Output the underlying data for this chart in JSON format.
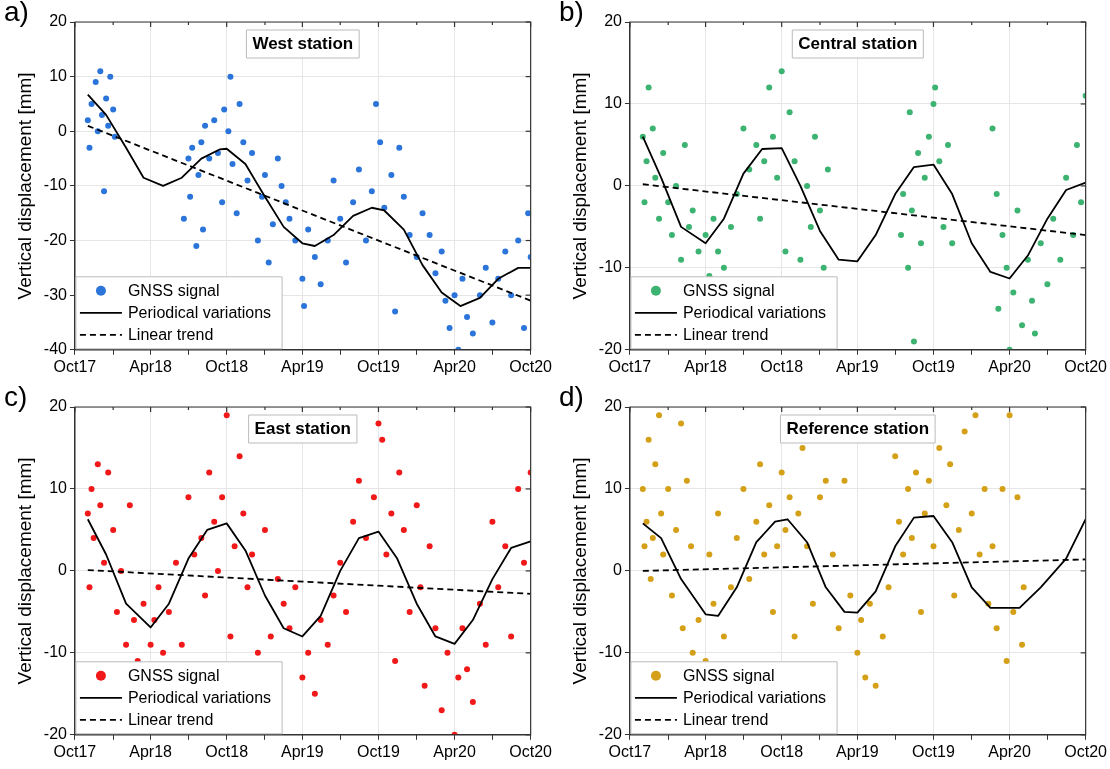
{
  "chart_data": [
    {
      "type": "scatter",
      "title": "West station",
      "ylabel": "Vertical displacement [mm]",
      "annotations": [
        "a)"
      ],
      "legend": "bottom left",
      "grid": true,
      "xlim": [
        "2017-10",
        "2020-10"
      ],
      "xticks": [
        {
          "value": "2017-10",
          "label": "Oct17"
        },
        {
          "value": "2018-01",
          "label": null
        },
        {
          "value": "2018-04",
          "label": "Apr18"
        },
        {
          "value": "2018-07",
          "label": null
        },
        {
          "value": "2018-10",
          "label": "Oct18"
        },
        {
          "value": "2019-01",
          "label": null
        },
        {
          "value": "2019-04",
          "label": "Apr19"
        },
        {
          "value": "2019-07",
          "label": null
        },
        {
          "value": "2019-10",
          "label": "Oct19"
        },
        {
          "value": "2020-01",
          "label": null
        },
        {
          "value": "2020-04",
          "label": "Apr20"
        },
        {
          "value": "2020-07",
          "label": null
        },
        {
          "value": "2020-10",
          "label": "Oct20"
        }
      ],
      "ylim": [
        -40,
        20
      ],
      "yticks": [
        -40,
        -30,
        -20,
        -10,
        0,
        10,
        20
      ],
      "series": [
        {
          "name": "GNSS signal",
          "type": "scatter",
          "marker": "circle",
          "color": "#2b74d9",
          "x": [
            "2017-11-01",
            "2017-11-05",
            "2017-11-10",
            "2017-11-20",
            "2017-11-25",
            "2017-12-01",
            "2017-12-05",
            "2017-12-10",
            "2017-12-15",
            "2017-12-20",
            "2017-12-25",
            "2018-01-01",
            "2018-01-05",
            "2018-06-20",
            "2018-07-01",
            "2018-07-05",
            "2018-07-10",
            "2018-07-20",
            "2018-07-25",
            "2018-08-01",
            "2018-08-05",
            "2018-08-10",
            "2018-08-20",
            "2018-09-01",
            "2018-09-10",
            "2018-09-20",
            "2018-09-25",
            "2018-10-05",
            "2018-10-10",
            "2018-10-15",
            "2018-10-25",
            "2018-11-01",
            "2018-11-10",
            "2018-11-20",
            "2018-12-01",
            "2018-12-15",
            "2018-12-25",
            "2019-01-01",
            "2019-01-10",
            "2019-01-20",
            "2019-02-01",
            "2019-02-10",
            "2019-02-20",
            "2019-03-01",
            "2019-03-15",
            "2019-04-01",
            "2019-04-05",
            "2019-04-15",
            "2019-05-01",
            "2019-05-15",
            "2019-06-01",
            "2019-06-15",
            "2019-07-01",
            "2019-07-15",
            "2019-08-01",
            "2019-08-15",
            "2019-09-01",
            "2019-09-15",
            "2019-09-25",
            "2019-10-05",
            "2019-10-15",
            "2019-11-01",
            "2019-11-10",
            "2019-11-20",
            "2019-12-01",
            "2019-12-15",
            "2020-01-01",
            "2020-01-15",
            "2020-02-01",
            "2020-02-15",
            "2020-03-01",
            "2020-03-10",
            "2020-03-20",
            "2020-04-01",
            "2020-04-10",
            "2020-04-20",
            "2020-05-01",
            "2020-05-15",
            "2020-06-01",
            "2020-06-15",
            "2020-07-01",
            "2020-07-15",
            "2020-08-01",
            "2020-08-15",
            "2020-09-01",
            "2020-09-15",
            "2020-09-25",
            "2020-10-01"
          ],
          "values": [
            2,
            -3,
            5,
            9,
            0,
            11,
            3,
            -11,
            6,
            1,
            10,
            4,
            -1,
            -16,
            -5,
            -12,
            -3,
            -21,
            -8,
            -2,
            -18,
            1,
            -5,
            2,
            -4,
            -13,
            4,
            0,
            10,
            -6,
            -15,
            5,
            -2,
            -9,
            -4,
            -20,
            -12,
            -8,
            -24,
            -17,
            -5,
            -10,
            -13,
            -16,
            -20,
            -27,
            -32,
            -18,
            -23,
            -28,
            -20,
            -9,
            -16,
            -24,
            -13,
            -7,
            -20,
            -11,
            5,
            -2,
            -14,
            -8,
            -33,
            -3,
            -12,
            -19,
            -23,
            -15,
            -19,
            -26,
            -22,
            -31,
            -36,
            -30,
            -40,
            -27,
            -34,
            -37,
            -30,
            -25,
            -35,
            -27,
            -22,
            -30,
            -20,
            -36,
            -15,
            -23
          ]
        },
        {
          "name": "Periodical variations",
          "type": "line",
          "marker": "none",
          "line_style": "solid",
          "color": "#000000",
          "x": [
            "2017-11-01",
            "2017-12-15",
            "2018-02-01",
            "2018-03-15",
            "2018-05-01",
            "2018-06-15",
            "2018-08-01",
            "2018-09-15",
            "2018-10-01",
            "2018-11-15",
            "2019-01-01",
            "2019-02-15",
            "2019-04-01",
            "2019-05-01",
            "2019-06-15",
            "2019-08-01",
            "2019-09-15",
            "2019-10-15",
            "2019-12-01",
            "2020-01-15",
            "2020-03-01",
            "2020-04-15",
            "2020-06-01",
            "2020-07-15",
            "2020-09-01",
            "2020-10-01"
          ],
          "values": [
            6.7,
            3,
            -3,
            -8.5,
            -10,
            -8.5,
            -5,
            -3.3,
            -3.2,
            -6,
            -12,
            -17.5,
            -20.5,
            -21,
            -19,
            -15.5,
            -14,
            -14.5,
            -18,
            -24.5,
            -29.5,
            -32,
            -30.5,
            -27,
            -25,
            -25
          ]
        },
        {
          "name": "Linear trend",
          "type": "line",
          "marker": "none",
          "line_style": "dashed",
          "color": "#000000",
          "x": [
            "2017-11-01",
            "2020-10-01"
          ],
          "values": [
            1,
            -31
          ]
        }
      ]
    },
    {
      "type": "scatter",
      "title": "Central station",
      "ylabel": "Vertical displacement [mm]",
      "annotations": [
        "b)"
      ],
      "legend": "bottom left",
      "grid": true,
      "xlim": [
        "2017-10",
        "2020-10"
      ],
      "xticks": [
        {
          "value": "2017-10",
          "label": "Oct17"
        },
        {
          "value": "2018-01",
          "label": null
        },
        {
          "value": "2018-04",
          "label": "Apr18"
        },
        {
          "value": "2018-07",
          "label": null
        },
        {
          "value": "2018-10",
          "label": "Oct18"
        },
        {
          "value": "2019-01",
          "label": null
        },
        {
          "value": "2019-04",
          "label": "Apr19"
        },
        {
          "value": "2019-07",
          "label": null
        },
        {
          "value": "2019-10",
          "label": "Oct19"
        },
        {
          "value": "2020-01",
          "label": null
        },
        {
          "value": "2020-04",
          "label": "Apr20"
        },
        {
          "value": "2020-07",
          "label": null
        },
        {
          "value": "2020-10",
          "label": "Oct20"
        }
      ],
      "ylim": [
        -20,
        20
      ],
      "yticks": [
        -20,
        -10,
        0,
        10,
        20
      ],
      "series": [
        {
          "name": "GNSS signal",
          "type": "scatter",
          "marker": "circle",
          "color": "#3cb371",
          "x": [
            "2017-11-01",
            "2017-11-05",
            "2017-11-10",
            "2017-11-15",
            "2017-11-25",
            "2017-12-01",
            "2017-12-10",
            "2017-12-20",
            "2018-01-01",
            "2018-01-10",
            "2018-01-20",
            "2018-02-01",
            "2018-02-10",
            "2018-02-20",
            "2018-03-01",
            "2018-03-15",
            "2018-04-01",
            "2018-04-10",
            "2018-04-20",
            "2018-05-01",
            "2018-05-15",
            "2018-06-01",
            "2018-06-15",
            "2018-07-01",
            "2018-07-15",
            "2018-08-01",
            "2018-08-10",
            "2018-08-20",
            "2018-09-01",
            "2018-09-10",
            "2018-09-20",
            "2018-10-01",
            "2018-10-10",
            "2018-10-20",
            "2018-11-01",
            "2018-11-15",
            "2018-12-01",
            "2018-12-10",
            "2018-12-20",
            "2019-01-01",
            "2019-01-10",
            "2019-01-20",
            "2019-07-15",
            "2019-07-20",
            "2019-08-01",
            "2019-08-05",
            "2019-08-10",
            "2019-08-15",
            "2019-08-25",
            "2019-09-01",
            "2019-09-10",
            "2019-09-20",
            "2019-10-01",
            "2019-10-05",
            "2019-10-15",
            "2019-10-25",
            "2019-11-05",
            "2019-11-15",
            "2020-02-20",
            "2020-03-01",
            "2020-03-05",
            "2020-03-15",
            "2020-03-25",
            "2020-04-01",
            "2020-04-10",
            "2020-04-20",
            "2020-05-01",
            "2020-05-15",
            "2020-05-25",
            "2020-06-01",
            "2020-06-15",
            "2020-07-01",
            "2020-07-15",
            "2020-08-01",
            "2020-08-15",
            "2020-09-01",
            "2020-09-10",
            "2020-09-20",
            "2020-10-01"
          ],
          "values": [
            6,
            -2,
            3,
            12,
            7,
            1,
            -4,
            4,
            -2,
            -6,
            0,
            -9,
            5,
            -5,
            -3,
            -8,
            -6,
            -11,
            -4,
            -8,
            -10,
            -5,
            -1,
            7,
            2,
            5,
            -4,
            3,
            12,
            6,
            1,
            14,
            -8,
            9,
            3,
            -9,
            0,
            -5,
            6,
            -3,
            -10,
            2,
            -6,
            -1,
            -10,
            9,
            -3,
            -19,
            4,
            -7,
            1,
            6,
            10,
            12,
            3,
            -5,
            5,
            -7,
            7,
            -1,
            -15,
            -6,
            -10,
            -20,
            -13,
            -3,
            -17,
            -9,
            -14,
            -18,
            -7,
            -12,
            -4,
            -9,
            1,
            -6,
            5,
            -2,
            11
          ]
        },
        {
          "name": "Periodical variations",
          "type": "line",
          "marker": "none",
          "line_style": "solid",
          "color": "#000000",
          "x": [
            "2017-11-01",
            "2017-12-15",
            "2018-02-01",
            "2018-04-01",
            "2018-05-15",
            "2018-07-01",
            "2018-08-15",
            "2018-10-01",
            "2018-11-15",
            "2019-01-01",
            "2019-02-15",
            "2019-04-01",
            "2019-05-15",
            "2019-07-01",
            "2019-08-15",
            "2019-10-01",
            "2019-11-15",
            "2020-01-01",
            "2020-02-15",
            "2020-04-01",
            "2020-05-15",
            "2020-07-01",
            "2020-08-15",
            "2020-10-01"
          ],
          "values": [
            6,
            1,
            -5,
            -7,
            -4,
            1.5,
            4.5,
            4.6,
            0,
            -5.5,
            -9,
            -9.2,
            -6,
            -1,
            2.3,
            2.6,
            -1,
            -7,
            -10.5,
            -11.3,
            -8.5,
            -4,
            -0.5,
            0.4
          ]
        },
        {
          "name": "Linear trend",
          "type": "line",
          "marker": "none",
          "line_style": "dashed",
          "color": "#000000",
          "x": [
            "2017-11-01",
            "2020-10-01"
          ],
          "values": [
            0.2,
            -6
          ]
        }
      ]
    },
    {
      "type": "scatter",
      "title": "East station",
      "ylabel": "Vertical displacement [mm]",
      "annotations": [
        "c)"
      ],
      "legend": "bottom left",
      "grid": true,
      "xlim": [
        "2017-10",
        "2020-10"
      ],
      "xticks": [
        {
          "value": "2017-10",
          "label": "Oct17"
        },
        {
          "value": "2018-01",
          "label": null
        },
        {
          "value": "2018-04",
          "label": "Apr18"
        },
        {
          "value": "2018-07",
          "label": null
        },
        {
          "value": "2018-10",
          "label": "Oct18"
        },
        {
          "value": "2019-01",
          "label": null
        },
        {
          "value": "2019-04",
          "label": "Apr19"
        },
        {
          "value": "2019-07",
          "label": null
        },
        {
          "value": "2019-10",
          "label": "Oct19"
        },
        {
          "value": "2020-01",
          "label": null
        },
        {
          "value": "2020-04",
          "label": "Apr20"
        },
        {
          "value": "2020-07",
          "label": null
        },
        {
          "value": "2020-10",
          "label": "Oct20"
        }
      ],
      "ylim": [
        -20,
        20
      ],
      "yticks": [
        -20,
        -10,
        0,
        10,
        20
      ],
      "series": [
        {
          "name": "GNSS signal",
          "type": "scatter",
          "marker": "circle",
          "color": "#f01818",
          "x": [
            "2017-11-01",
            "2017-11-05",
            "2017-11-10",
            "2017-11-15",
            "2017-11-25",
            "2017-12-01",
            "2017-12-10",
            "2017-12-20",
            "2018-01-01",
            "2018-01-10",
            "2018-01-20",
            "2018-02-01",
            "2018-02-10",
            "2018-02-20",
            "2018-03-01",
            "2018-03-15",
            "2018-04-01",
            "2018-04-10",
            "2018-04-20",
            "2018-05-01",
            "2018-05-15",
            "2018-06-01",
            "2018-06-15",
            "2018-07-01",
            "2018-07-15",
            "2018-08-01",
            "2018-08-10",
            "2018-08-20",
            "2018-09-01",
            "2018-09-10",
            "2018-09-20",
            "2018-10-01",
            "2018-10-10",
            "2018-10-20",
            "2018-11-01",
            "2018-11-10",
            "2018-11-20",
            "2018-12-01",
            "2018-12-15",
            "2019-01-01",
            "2019-01-15",
            "2019-02-01",
            "2019-02-15",
            "2019-03-01",
            "2019-03-15",
            "2019-04-01",
            "2019-04-15",
            "2019-05-01",
            "2019-05-15",
            "2019-06-01",
            "2019-06-15",
            "2019-07-01",
            "2019-07-15",
            "2019-08-01",
            "2019-08-15",
            "2019-09-01",
            "2019-09-20",
            "2019-10-01",
            "2019-10-10",
            "2019-10-20",
            "2019-11-01",
            "2019-11-10",
            "2019-11-20",
            "2019-12-01",
            "2019-12-15",
            "2020-01-01",
            "2020-01-10",
            "2020-01-20",
            "2020-02-01",
            "2020-02-15",
            "2020-03-01",
            "2020-03-15",
            "2020-04-01",
            "2020-04-10",
            "2020-04-20",
            "2020-05-01",
            "2020-05-15",
            "2020-06-01",
            "2020-06-15",
            "2020-07-01",
            "2020-07-15",
            "2020-08-01",
            "2020-08-15",
            "2020-09-01",
            "2020-09-15",
            "2020-10-01"
          ],
          "values": [
            7,
            -2,
            10,
            4,
            13,
            8,
            1,
            12,
            5,
            -5,
            0,
            -9,
            8,
            -6,
            -11,
            -4,
            -9,
            -6,
            -2,
            -10,
            -5,
            1,
            -9,
            9,
            2,
            4,
            -3,
            12,
            6,
            0,
            9,
            19,
            -8,
            3,
            14,
            7,
            -2,
            2,
            -10,
            5,
            -8,
            -1,
            -4,
            -7,
            -2,
            -13,
            -10,
            -15,
            -6,
            -9,
            -3,
            1,
            -5,
            6,
            11,
            4,
            9,
            18,
            16,
            2,
            7,
            -11,
            12,
            5,
            -5,
            8,
            -2,
            -14,
            3,
            -7,
            -17,
            -10,
            -20,
            -13,
            -7,
            -12,
            -16,
            -4,
            -9,
            6,
            -2,
            3,
            -8,
            10,
            1,
            12
          ]
        },
        {
          "name": "Periodical variations",
          "type": "line",
          "marker": "none",
          "line_style": "solid",
          "color": "#000000",
          "x": [
            "2017-11-01",
            "2017-12-15",
            "2018-02-01",
            "2018-04-01",
            "2018-05-15",
            "2018-07-01",
            "2018-08-15",
            "2018-10-01",
            "2018-11-15",
            "2019-01-01",
            "2019-02-15",
            "2019-04-01",
            "2019-05-15",
            "2019-07-01",
            "2019-08-15",
            "2019-10-01",
            "2019-11-15",
            "2020-01-01",
            "2020-02-15",
            "2020-04-01",
            "2020-05-15",
            "2020-07-01",
            "2020-08-15",
            "2020-10-01"
          ],
          "values": [
            6.3,
            2,
            -4,
            -6.9,
            -4,
            1.5,
            5,
            5.8,
            2.5,
            -3,
            -7,
            -8,
            -5.5,
            0,
            4,
            4.8,
            1.5,
            -4,
            -8,
            -8.9,
            -6,
            -1,
            2.8,
            3.6
          ]
        },
        {
          "name": "Linear trend",
          "type": "line",
          "marker": "none",
          "line_style": "dashed",
          "color": "#000000",
          "x": [
            "2017-11-01",
            "2020-10-01"
          ],
          "values": [
            0.1,
            -2.8
          ]
        }
      ]
    },
    {
      "type": "scatter",
      "title": "Reference station",
      "ylabel": "Vertical displacement [mm]",
      "annotations": [
        "d)"
      ],
      "legend": "bottom left",
      "grid": true,
      "xlim": [
        "2017-10",
        "2020-10"
      ],
      "xticks": [
        {
          "value": "2017-10",
          "label": "Oct17"
        },
        {
          "value": "2018-01",
          "label": null
        },
        {
          "value": "2018-04",
          "label": "Apr18"
        },
        {
          "value": "2018-07",
          "label": null
        },
        {
          "value": "2018-10",
          "label": "Oct18"
        },
        {
          "value": "2019-01",
          "label": null
        },
        {
          "value": "2019-04",
          "label": "Apr19"
        },
        {
          "value": "2019-07",
          "label": null
        },
        {
          "value": "2019-10",
          "label": "Oct19"
        },
        {
          "value": "2020-01",
          "label": null
        },
        {
          "value": "2020-04",
          "label": "Apr20"
        },
        {
          "value": "2020-07",
          "label": null
        },
        {
          "value": "2020-10",
          "label": "Oct20"
        }
      ],
      "ylim": [
        -20,
        20
      ],
      "yticks": [
        -20,
        -10,
        0,
        10,
        20
      ],
      "series": [
        {
          "name": "GNSS signal",
          "type": "scatter",
          "marker": "circle",
          "color": "#d4a017",
          "x": [
            "2017-11-01",
            "2017-11-05",
            "2017-11-10",
            "2017-11-15",
            "2017-11-20",
            "2017-11-25",
            "2017-12-01",
            "2017-12-10",
            "2017-12-15",
            "2017-12-20",
            "2018-01-01",
            "2018-01-10",
            "2018-01-20",
            "2018-02-01",
            "2018-02-05",
            "2018-02-15",
            "2018-02-25",
            "2018-03-01",
            "2018-03-15",
            "2018-04-01",
            "2018-04-10",
            "2018-04-20",
            "2018-05-01",
            "2018-05-15",
            "2018-06-01",
            "2018-06-15",
            "2018-07-01",
            "2018-07-15",
            "2018-08-01",
            "2018-08-10",
            "2018-08-20",
            "2018-09-01",
            "2018-09-10",
            "2018-09-20",
            "2018-10-01",
            "2018-10-10",
            "2018-10-20",
            "2018-11-01",
            "2018-11-10",
            "2018-11-20",
            "2018-12-01",
            "2018-12-15",
            "2019-01-01",
            "2019-01-15",
            "2019-02-01",
            "2019-02-15",
            "2019-03-01",
            "2019-03-15",
            "2019-04-01",
            "2019-04-10",
            "2019-04-20",
            "2019-05-01",
            "2019-05-15",
            "2019-06-01",
            "2019-06-15",
            "2019-07-01",
            "2019-07-10",
            "2019-07-20",
            "2019-08-01",
            "2019-08-10",
            "2019-08-20",
            "2019-09-01",
            "2019-09-10",
            "2019-09-20",
            "2019-10-01",
            "2019-10-15",
            "2019-11-01",
            "2019-11-10",
            "2019-11-20",
            "2019-12-01",
            "2019-12-15",
            "2020-01-01",
            "2020-01-10",
            "2020-01-20",
            "2020-02-01",
            "2020-02-10",
            "2020-02-20",
            "2020-03-01",
            "2020-03-15",
            "2020-03-25",
            "2020-04-01",
            "2020-04-10",
            "2020-04-20",
            "2020-05-01",
            "2020-05-05"
          ],
          "values": [
            10,
            3,
            6,
            16,
            -1,
            4,
            13,
            19,
            7,
            2,
            10,
            -3,
            5,
            18,
            -7,
            11,
            3,
            -10,
            -6,
            -11,
            2,
            -4,
            7,
            -8,
            -2,
            4,
            10,
            -1,
            6,
            13,
            2,
            8,
            -5,
            3,
            12,
            5,
            9,
            -8,
            7,
            15,
            3,
            -4,
            9,
            11,
            2,
            -7,
            11,
            -3,
            -10,
            -6,
            -13,
            -4,
            -14,
            -8,
            -2,
            14,
            6,
            2,
            10,
            4,
            12,
            -5,
            7,
            11,
            3,
            15,
            8,
            13,
            -3,
            5,
            17,
            7,
            19,
            2,
            10,
            -4,
            3,
            -7,
            10,
            -11,
            19,
            -5,
            9,
            -9,
            -2
          ]
        },
        {
          "name": "Periodical variations",
          "type": "line",
          "marker": "none",
          "line_style": "solid",
          "color": "#000000",
          "x": [
            "2017-11-01",
            "2017-12-15",
            "2018-02-01",
            "2018-04-01",
            "2018-05-01",
            "2018-06-15",
            "2018-08-01",
            "2018-09-15",
            "2018-10-15",
            "2018-12-01",
            "2019-01-15",
            "2019-03-01",
            "2019-04-01",
            "2019-05-15",
            "2019-07-01",
            "2019-08-15",
            "2019-10-01",
            "2019-11-15",
            "2020-01-01",
            "2020-02-15",
            "2020-04-25",
            "2020-06-15",
            "2020-08-15",
            "2020-10-01"
          ],
          "values": [
            5.8,
            4,
            -1,
            -5.3,
            -5.5,
            -2,
            3.5,
            6,
            6.3,
            3.5,
            -2,
            -5,
            -5.1,
            -2.5,
            3,
            6.5,
            6.7,
            3.5,
            -2,
            -4.5,
            -4.5,
            -2,
            1.5,
            6.3
          ]
        },
        {
          "name": "Linear trend",
          "type": "line",
          "marker": "none",
          "line_style": "dashed",
          "color": "#000000",
          "x": [
            "2017-11-01",
            "2020-10-01"
          ],
          "values": [
            0,
            1.4
          ]
        }
      ]
    }
  ]
}
